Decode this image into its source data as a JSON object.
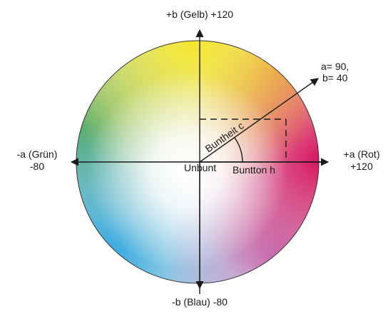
{
  "axes": {
    "pos_b": "+b (Gelb) +120",
    "neg_b": "-b (Blau) -80",
    "neg_a_line1": "-a (Grün)",
    "neg_a_line2": "-80",
    "pos_a_line1": "+a (Rot)",
    "pos_a_line2": "+120"
  },
  "center_label": "Unbunt",
  "chroma_label": "Buntheit c",
  "hue_label": "Buntton h",
  "point_label_line1": "a= 90,",
  "point_label_line2": "b= 40",
  "point": {
    "a": 90,
    "b": 40
  },
  "colors": {
    "yellow": "#f4e62a",
    "red": "#d8145e",
    "blue": "#2ea6e0",
    "green": "#4fa86a",
    "line": "#1a1a1a"
  }
}
